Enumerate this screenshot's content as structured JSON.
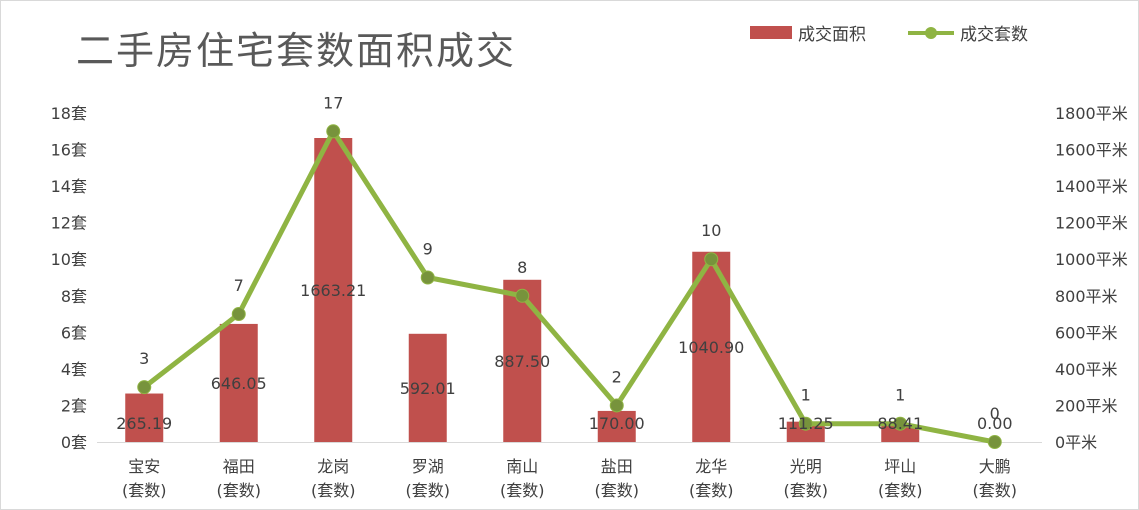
{
  "chart_data": {
    "type": "bar",
    "title": "二手房住宅套数面积成交",
    "categories": [
      "宝安",
      "福田",
      "龙岗",
      "罗湖",
      "南山",
      "盐田",
      "龙华",
      "光明",
      "坪山",
      "大鹏"
    ],
    "category_sub": "(套数)",
    "series": [
      {
        "name": "成交面积",
        "type": "bar",
        "axis": "right",
        "values": [
          265.19,
          646.05,
          1663.21,
          592.01,
          887.5,
          170.0,
          1040.9,
          111.25,
          88.41,
          0.0
        ],
        "labels": [
          "265.19",
          "646.05",
          "1663.21",
          "592.01",
          "887.50",
          "170.00",
          "1040.90",
          "111.25",
          "88.41",
          "0.00"
        ],
        "color": "#c0504d"
      },
      {
        "name": "成交套数",
        "type": "line",
        "axis": "left",
        "values": [
          3,
          7,
          17,
          9,
          8,
          2,
          10,
          1,
          1,
          0
        ],
        "labels": [
          "3",
          "7",
          "17",
          "9",
          "8",
          "2",
          "10",
          "1",
          "1",
          "0"
        ],
        "color": "#8fb443"
      }
    ],
    "y_left": {
      "min": 0,
      "max": 18,
      "ticks": [
        "0套",
        "2套",
        "4套",
        "6套",
        "8套",
        "10套",
        "12套",
        "14套",
        "16套",
        "18套"
      ]
    },
    "y_right": {
      "min": 0,
      "max": 1800,
      "ticks": [
        "0平米",
        "200平米",
        "400平米",
        "600平米",
        "800平米",
        "1000平米",
        "1200平米",
        "1400平米",
        "1600平米",
        "1800平米"
      ]
    },
    "grid": false,
    "legend_position": "top-right"
  }
}
